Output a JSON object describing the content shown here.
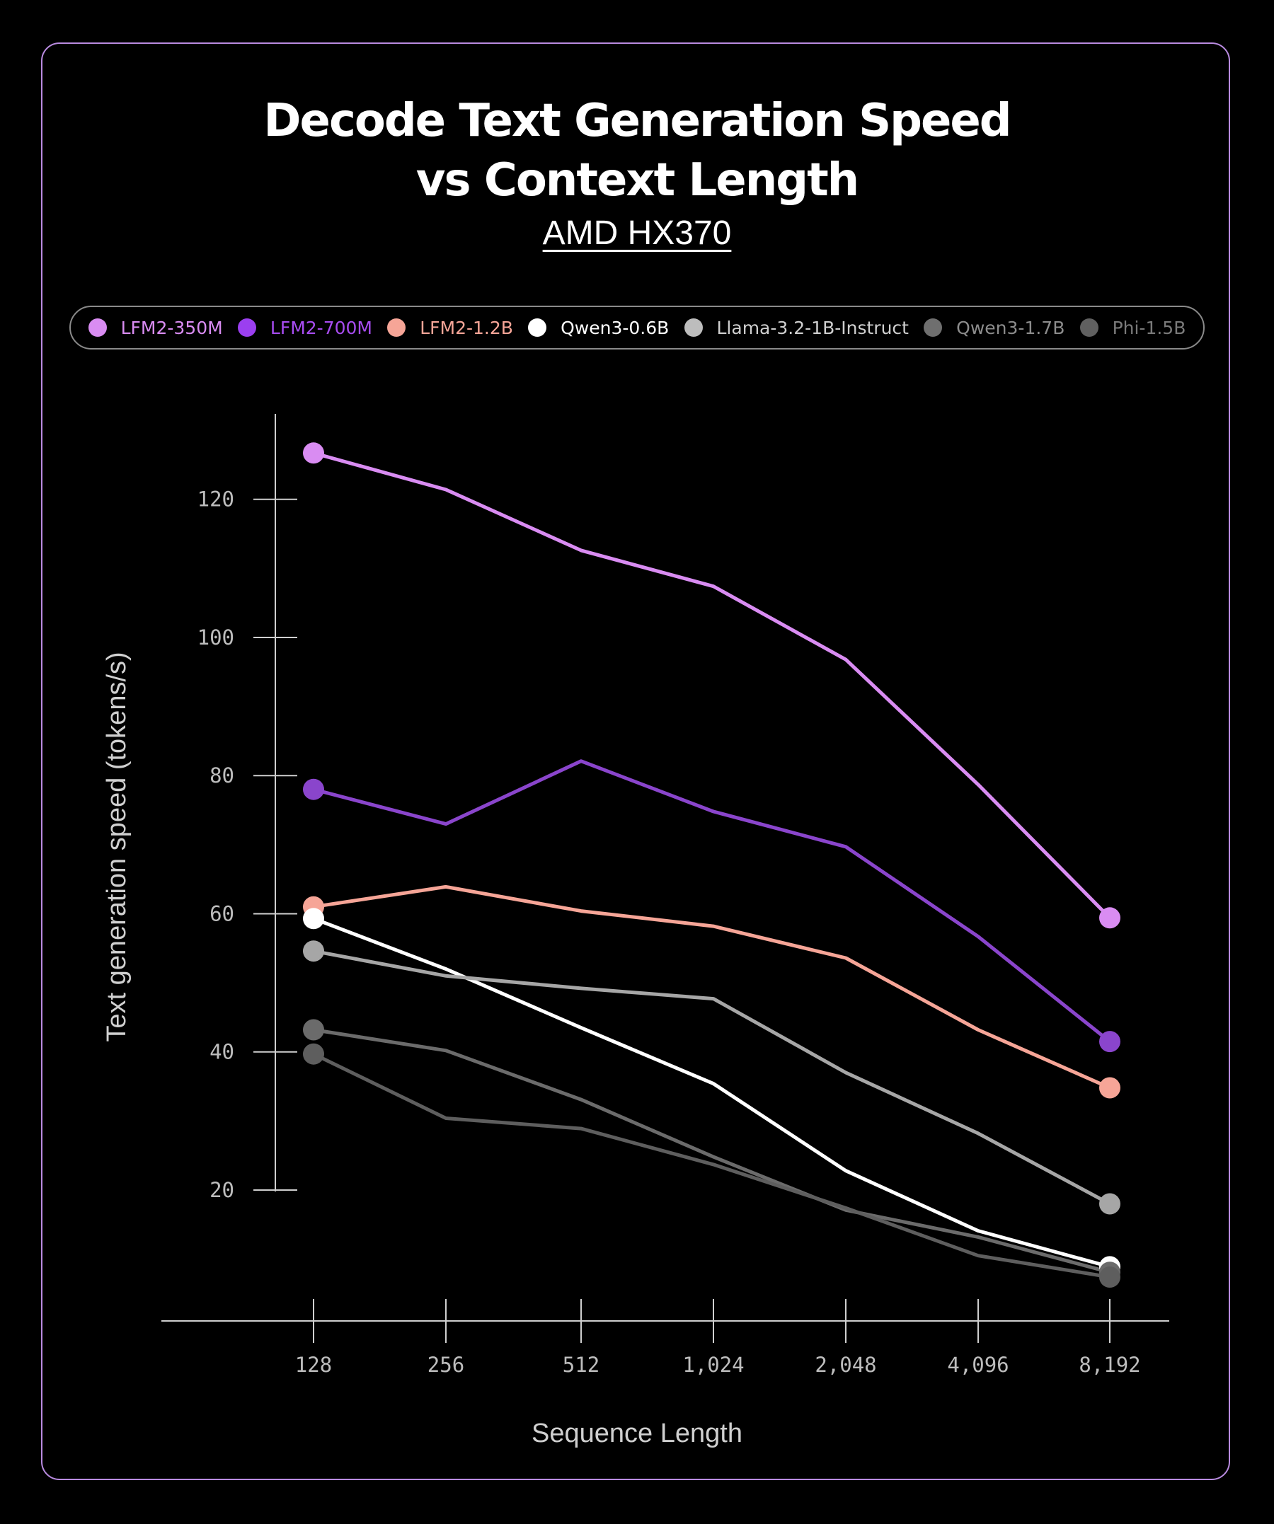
{
  "chart_data": {
    "type": "line",
    "title_line1": "Decode Text Generation Speed",
    "title_line2": "vs Context Length",
    "subtitle": "AMD HX370",
    "xlabel": "Sequence Length",
    "ylabel": "Text generation speed (tokens/s)",
    "categories": [
      "128",
      "256",
      "512",
      "1,024",
      "2,048",
      "4,096",
      "8,192"
    ],
    "yticks": [
      20,
      40,
      60,
      80,
      100,
      120
    ],
    "ylim": [
      6,
      128
    ],
    "legend_position": "top",
    "series": [
      {
        "name": "LFM2-350M",
        "color": "#d98cf2",
        "values": [
          126.7,
          121.4,
          112.6,
          107.4,
          96.8,
          78.7,
          59.4
        ]
      },
      {
        "name": "LFM2-700M",
        "color": "#8a45cc",
        "values": [
          78.0,
          73.0,
          82.1,
          74.8,
          69.7,
          56.7,
          41.5
        ]
      },
      {
        "name": "LFM2-1.2B",
        "color": "#f6a597",
        "values": [
          61.0,
          63.9,
          60.4,
          58.2,
          53.6,
          43.2,
          34.8
        ]
      },
      {
        "name": "Qwen3-0.6B",
        "color": "#ffffff",
        "values": [
          59.3,
          52.0,
          43.5,
          35.4,
          22.8,
          14.1,
          8.9
        ]
      },
      {
        "name": "Llama-3.2-1B-Instruct",
        "color": "#a6a6a6",
        "values": [
          54.6,
          51.0,
          49.2,
          47.7,
          37.0,
          28.2,
          18.0
        ]
      },
      {
        "name": "Qwen3-1.7B",
        "color": "#6b6b6b",
        "values": [
          43.2,
          40.2,
          33.1,
          24.8,
          17.1,
          13.2,
          8.1
        ]
      },
      {
        "name": "Phi-1.5B",
        "color": "#5e5e5e",
        "values": [
          39.7,
          30.4,
          28.9,
          23.7,
          17.4,
          10.5,
          7.4
        ]
      }
    ],
    "legend_text_colors": [
      "#d98cf2",
      "#a74cf0",
      "#f6a597",
      "#ffffff",
      "#cfcfcf",
      "#8c8c8c",
      "#7a7a7a"
    ],
    "legend_dot_colors": [
      "#d98cf2",
      "#9b3ff0",
      "#f6a597",
      "#ffffff",
      "#bdbdbd",
      "#6f6f6f",
      "#606060"
    ]
  }
}
